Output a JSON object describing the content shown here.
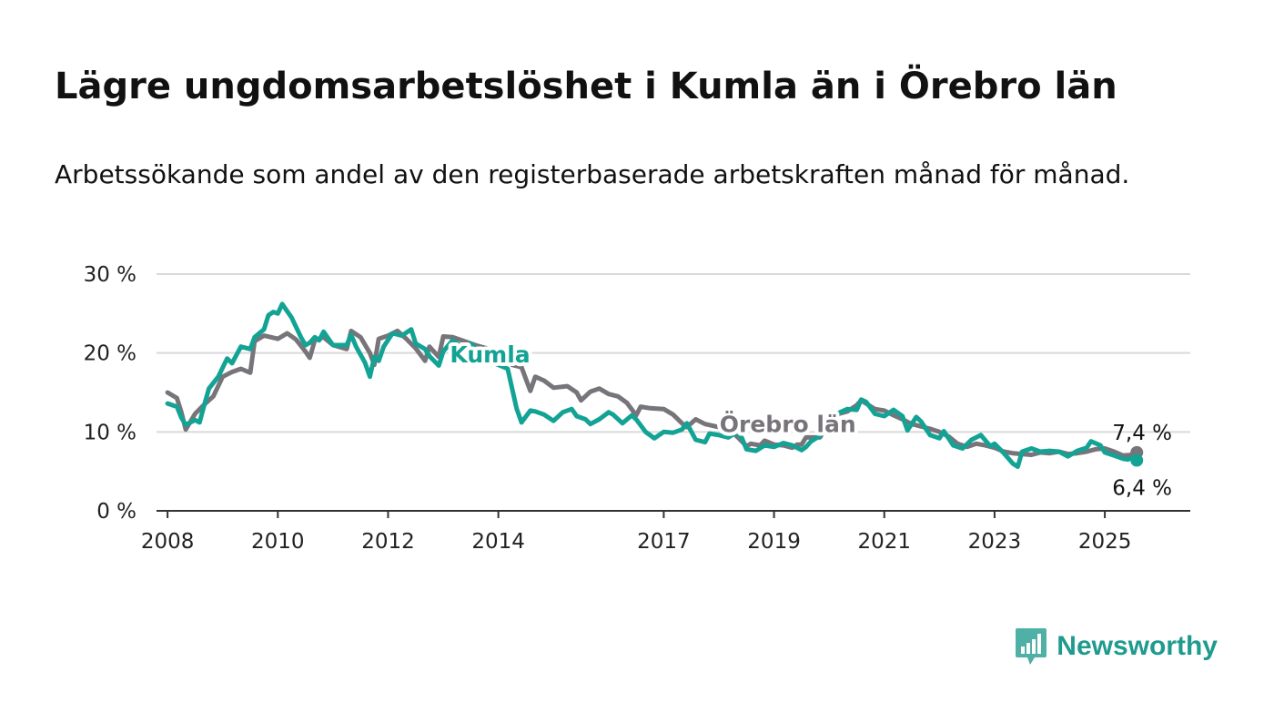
{
  "title": "Lägre ungdomsarbetslöshet i Kumla än i Örebro län",
  "subtitle": "Arbetssökande som andel av den registerbaserade arbetskraften månad för månad.",
  "brand": {
    "name": "Newsworthy",
    "icon": "bar-chart-speech-bubble-icon",
    "color": "#1e9b8e"
  },
  "chart_data": {
    "type": "line",
    "title": "Lägre ungdomsarbetslöshet i Kumla än i Örebro län",
    "subtitle": "Arbetssökande som andel av den registerbaserade arbetskraften månad för månad.",
    "xlabel": "",
    "ylabel": "",
    "x_unit": "year",
    "xlim": [
      2007.8,
      2026.55
    ],
    "ylim": [
      0,
      30
    ],
    "y_ticks": [
      0,
      10,
      20,
      30
    ],
    "y_tick_labels": [
      "0 %",
      "10 %",
      "20 %",
      "30 %"
    ],
    "x_ticks": [
      2008,
      2010,
      2012,
      2014,
      2017,
      2019,
      2021,
      2023,
      2025
    ],
    "x_tick_labels": [
      "2008",
      "2010",
      "2012",
      "2014",
      "2017",
      "2019",
      "2021",
      "2023",
      "2025"
    ],
    "grid": "horizontal",
    "legend": "inline labels",
    "series": [
      {
        "name": "Örebro län",
        "color": "#77747a",
        "end_label": "7,4 %",
        "end_marker": true,
        "points": [
          [
            2008.0,
            15.0
          ],
          [
            2008.17,
            14.3
          ],
          [
            2008.25,
            12.5
          ],
          [
            2008.33,
            10.3
          ],
          [
            2008.5,
            12.3
          ],
          [
            2008.67,
            13.5
          ],
          [
            2008.83,
            14.5
          ],
          [
            2009.0,
            17.0
          ],
          [
            2009.17,
            17.6
          ],
          [
            2009.33,
            18.0
          ],
          [
            2009.5,
            17.5
          ],
          [
            2009.58,
            21.5
          ],
          [
            2009.75,
            22.2
          ],
          [
            2010.0,
            21.8
          ],
          [
            2010.17,
            22.5
          ],
          [
            2010.33,
            21.7
          ],
          [
            2010.5,
            20.2
          ],
          [
            2010.58,
            19.4
          ],
          [
            2010.67,
            21.6
          ],
          [
            2010.83,
            22.0
          ],
          [
            2011.0,
            21.0
          ],
          [
            2011.25,
            20.5
          ],
          [
            2011.33,
            22.8
          ],
          [
            2011.5,
            22.0
          ],
          [
            2011.67,
            20.0
          ],
          [
            2011.75,
            18.5
          ],
          [
            2011.83,
            21.8
          ],
          [
            2012.0,
            22.2
          ],
          [
            2012.17,
            22.8
          ],
          [
            2012.33,
            21.8
          ],
          [
            2012.5,
            20.6
          ],
          [
            2012.67,
            19.0
          ],
          [
            2012.75,
            20.8
          ],
          [
            2012.92,
            19.5
          ],
          [
            2013.0,
            22.1
          ],
          [
            2013.17,
            22.0
          ],
          [
            2013.42,
            21.4
          ],
          [
            2013.58,
            21.0
          ],
          [
            2013.83,
            20.5
          ],
          [
            2014.0,
            20.4
          ],
          [
            2014.08,
            20.2
          ],
          [
            2014.25,
            18.5
          ],
          [
            2014.42,
            18.2
          ],
          [
            2014.5,
            16.7
          ],
          [
            2014.58,
            15.2
          ],
          [
            2014.67,
            17.0
          ],
          [
            2014.83,
            16.5
          ],
          [
            2015.0,
            15.6
          ],
          [
            2015.25,
            15.8
          ],
          [
            2015.42,
            15.0
          ],
          [
            2015.5,
            14.0
          ],
          [
            2015.67,
            15.1
          ],
          [
            2015.83,
            15.5
          ],
          [
            2016.0,
            14.8
          ],
          [
            2016.17,
            14.5
          ],
          [
            2016.33,
            13.7
          ],
          [
            2016.5,
            12.1
          ],
          [
            2016.58,
            13.2
          ],
          [
            2016.75,
            13.0
          ],
          [
            2017.0,
            12.9
          ],
          [
            2017.17,
            12.2
          ],
          [
            2017.33,
            11.1
          ],
          [
            2017.42,
            10.6
          ],
          [
            2017.58,
            11.6
          ],
          [
            2017.75,
            11.0
          ],
          [
            2018.0,
            10.6
          ],
          [
            2018.17,
            10.4
          ],
          [
            2018.33,
            9.4
          ],
          [
            2018.5,
            8.2
          ],
          [
            2018.58,
            8.5
          ],
          [
            2018.75,
            8.3
          ],
          [
            2018.83,
            8.9
          ],
          [
            2019.0,
            8.4
          ],
          [
            2019.17,
            8.3
          ],
          [
            2019.33,
            8.0
          ],
          [
            2019.42,
            8.4
          ],
          [
            2019.5,
            8.4
          ],
          [
            2019.58,
            9.3
          ],
          [
            2019.67,
            9.3
          ],
          [
            2019.83,
            9.3
          ],
          [
            2020.0,
            11.0
          ],
          [
            2020.17,
            12.3
          ],
          [
            2020.33,
            12.6
          ],
          [
            2020.5,
            13.4
          ],
          [
            2020.58,
            14.0
          ],
          [
            2020.67,
            13.6
          ],
          [
            2020.83,
            12.9
          ],
          [
            2021.0,
            12.7
          ],
          [
            2021.17,
            12.1
          ],
          [
            2021.33,
            11.6
          ],
          [
            2021.5,
            11.0
          ],
          [
            2021.67,
            10.7
          ],
          [
            2021.83,
            10.4
          ],
          [
            2022.0,
            10.0
          ],
          [
            2022.17,
            9.4
          ],
          [
            2022.33,
            8.5
          ],
          [
            2022.5,
            8.1
          ],
          [
            2022.67,
            8.5
          ],
          [
            2022.83,
            8.3
          ],
          [
            2023.0,
            8.0
          ],
          [
            2023.17,
            7.5
          ],
          [
            2023.33,
            7.3
          ],
          [
            2023.5,
            7.2
          ],
          [
            2023.67,
            7.1
          ],
          [
            2023.83,
            7.4
          ],
          [
            2024.0,
            7.3
          ],
          [
            2024.17,
            7.5
          ],
          [
            2024.33,
            7.2
          ],
          [
            2024.5,
            7.3
          ],
          [
            2024.67,
            7.5
          ],
          [
            2024.83,
            7.8
          ],
          [
            2025.0,
            7.9
          ],
          [
            2025.17,
            7.5
          ],
          [
            2025.33,
            7.0
          ],
          [
            2025.5,
            7.1
          ],
          [
            2025.58,
            7.4
          ]
        ]
      },
      {
        "name": "Kumla",
        "color": "#13a395",
        "end_label": "6,4 %",
        "end_marker": true,
        "points": [
          [
            2008.0,
            13.6
          ],
          [
            2008.17,
            13.2
          ],
          [
            2008.25,
            11.8
          ],
          [
            2008.33,
            10.9
          ],
          [
            2008.5,
            11.5
          ],
          [
            2008.58,
            11.2
          ],
          [
            2008.67,
            13.5
          ],
          [
            2008.75,
            15.5
          ],
          [
            2008.92,
            17.0
          ],
          [
            2009.08,
            19.3
          ],
          [
            2009.17,
            18.7
          ],
          [
            2009.33,
            20.8
          ],
          [
            2009.5,
            20.5
          ],
          [
            2009.58,
            22.0
          ],
          [
            2009.75,
            23.0
          ],
          [
            2009.83,
            24.8
          ],
          [
            2009.92,
            25.2
          ],
          [
            2010.0,
            25.0
          ],
          [
            2010.08,
            26.2
          ],
          [
            2010.25,
            24.5
          ],
          [
            2010.42,
            22.0
          ],
          [
            2010.5,
            21.0
          ],
          [
            2010.58,
            21.3
          ],
          [
            2010.67,
            22.0
          ],
          [
            2010.75,
            21.6
          ],
          [
            2010.83,
            22.7
          ],
          [
            2011.0,
            21.0
          ],
          [
            2011.25,
            21.0
          ],
          [
            2011.33,
            22.3
          ],
          [
            2011.42,
            20.8
          ],
          [
            2011.58,
            18.8
          ],
          [
            2011.67,
            17.0
          ],
          [
            2011.75,
            19.5
          ],
          [
            2011.83,
            19.0
          ],
          [
            2011.92,
            20.8
          ],
          [
            2012.08,
            22.5
          ],
          [
            2012.25,
            22.2
          ],
          [
            2012.42,
            23.0
          ],
          [
            2012.5,
            21.2
          ],
          [
            2012.67,
            20.5
          ],
          [
            2012.75,
            19.6
          ],
          [
            2012.92,
            18.4
          ],
          [
            2013.0,
            20.2
          ],
          [
            2013.17,
            21.6
          ],
          [
            2013.33,
            20.8
          ],
          [
            2013.5,
            21.2
          ],
          [
            2013.67,
            20.0
          ],
          [
            2013.83,
            19.0
          ],
          [
            2014.0,
            18.5
          ],
          [
            2014.17,
            18.0
          ],
          [
            2014.33,
            13.0
          ],
          [
            2014.42,
            11.2
          ],
          [
            2014.58,
            12.7
          ],
          [
            2014.67,
            12.6
          ],
          [
            2014.83,
            12.2
          ],
          [
            2015.0,
            11.4
          ],
          [
            2015.17,
            12.5
          ],
          [
            2015.33,
            12.9
          ],
          [
            2015.42,
            12.0
          ],
          [
            2015.58,
            11.6
          ],
          [
            2015.67,
            11.0
          ],
          [
            2015.83,
            11.6
          ],
          [
            2016.0,
            12.5
          ],
          [
            2016.08,
            12.2
          ],
          [
            2016.25,
            11.1
          ],
          [
            2016.42,
            12.1
          ],
          [
            2016.5,
            11.6
          ],
          [
            2016.67,
            10.0
          ],
          [
            2016.83,
            9.2
          ],
          [
            2017.0,
            10.0
          ],
          [
            2017.17,
            9.9
          ],
          [
            2017.33,
            10.3
          ],
          [
            2017.42,
            11.1
          ],
          [
            2017.58,
            9.0
          ],
          [
            2017.75,
            8.7
          ],
          [
            2017.83,
            9.8
          ],
          [
            2018.0,
            9.6
          ],
          [
            2018.17,
            9.3
          ],
          [
            2018.33,
            10.0
          ],
          [
            2018.42,
            9.2
          ],
          [
            2018.5,
            7.8
          ],
          [
            2018.67,
            7.6
          ],
          [
            2018.83,
            8.3
          ],
          [
            2019.0,
            8.1
          ],
          [
            2019.17,
            8.6
          ],
          [
            2019.33,
            8.3
          ],
          [
            2019.5,
            7.7
          ],
          [
            2019.58,
            8.1
          ],
          [
            2019.67,
            8.8
          ],
          [
            2019.83,
            9.5
          ],
          [
            2020.0,
            11.2
          ],
          [
            2020.17,
            12.4
          ],
          [
            2020.33,
            12.9
          ],
          [
            2020.5,
            12.8
          ],
          [
            2020.58,
            14.1
          ],
          [
            2020.67,
            13.8
          ],
          [
            2020.83,
            12.3
          ],
          [
            2021.0,
            12.0
          ],
          [
            2021.17,
            12.8
          ],
          [
            2021.33,
            12.0
          ],
          [
            2021.42,
            10.2
          ],
          [
            2021.58,
            11.9
          ],
          [
            2021.67,
            11.3
          ],
          [
            2021.83,
            9.6
          ],
          [
            2022.0,
            9.2
          ],
          [
            2022.08,
            10.1
          ],
          [
            2022.25,
            8.3
          ],
          [
            2022.42,
            7.9
          ],
          [
            2022.58,
            9.0
          ],
          [
            2022.75,
            9.6
          ],
          [
            2022.92,
            8.2
          ],
          [
            2023.0,
            8.5
          ],
          [
            2023.17,
            7.3
          ],
          [
            2023.33,
            6.0
          ],
          [
            2023.42,
            5.6
          ],
          [
            2023.5,
            7.5
          ],
          [
            2023.67,
            7.9
          ],
          [
            2023.83,
            7.5
          ],
          [
            2024.0,
            7.6
          ],
          [
            2024.17,
            7.5
          ],
          [
            2024.33,
            6.9
          ],
          [
            2024.5,
            7.6
          ],
          [
            2024.67,
            8.0
          ],
          [
            2024.75,
            8.8
          ],
          [
            2024.92,
            8.3
          ],
          [
            2025.0,
            7.4
          ],
          [
            2025.17,
            7.0
          ],
          [
            2025.33,
            6.6
          ],
          [
            2025.42,
            6.5
          ],
          [
            2025.5,
            6.8
          ],
          [
            2025.58,
            6.4
          ]
        ]
      }
    ],
    "annotations": [
      {
        "text": "Kumla",
        "series": "Kumla",
        "at_x": 2013.85,
        "at_y": 18.8
      },
      {
        "text": "Örebro län",
        "series": "Örebro län",
        "at_x": 2019.25,
        "at_y": 10.0
      }
    ]
  }
}
